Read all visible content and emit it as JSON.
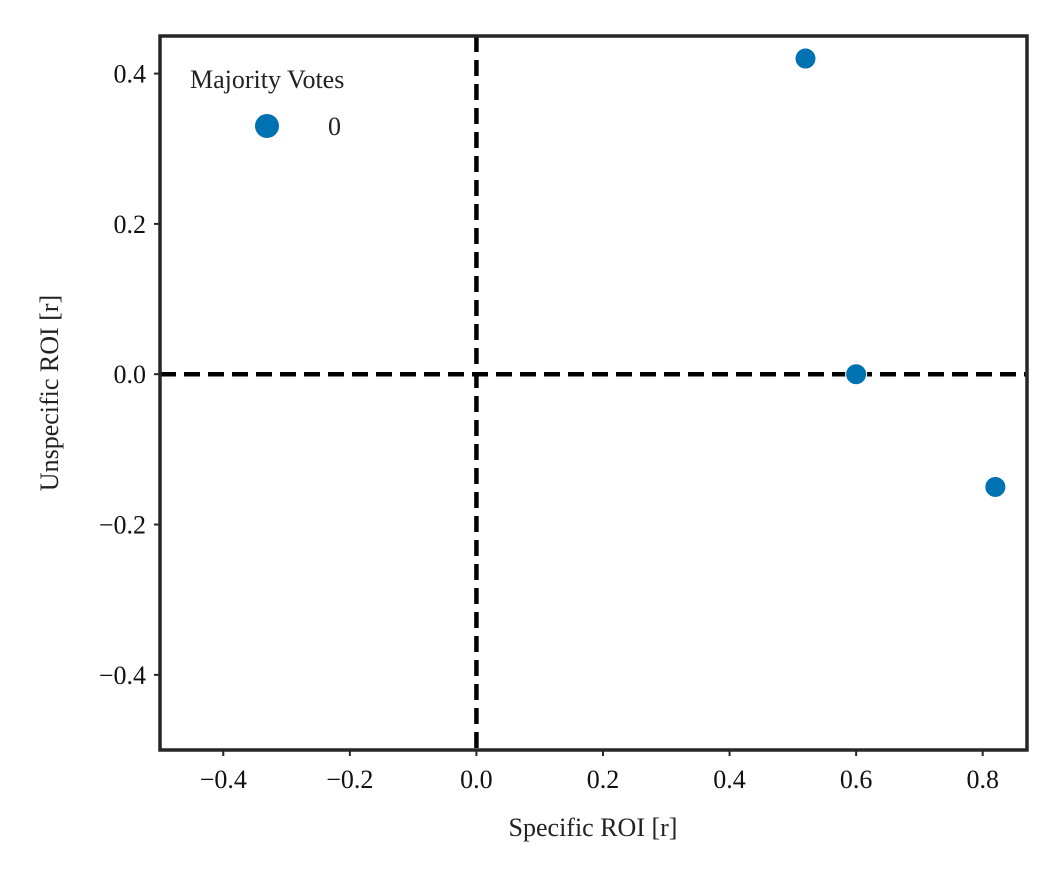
{
  "chart_data": {
    "type": "scatter",
    "xlabel": "Specific ROI [r]",
    "ylabel": "Unspecific ROI [r]",
    "xlim": [
      -0.5,
      0.87
    ],
    "ylim": [
      -0.5,
      0.45
    ],
    "x_ticks": [
      -0.4,
      -0.2,
      0.0,
      0.2,
      0.4,
      0.6,
      0.8
    ],
    "y_ticks": [
      -0.4,
      -0.2,
      0.0,
      0.2,
      0.4
    ],
    "x_tick_labels": [
      "−0.4",
      "−0.2",
      "0.0",
      "0.2",
      "0.4",
      "0.6",
      "0.8"
    ],
    "y_tick_labels": [
      "−0.4",
      "−0.2",
      "0.0",
      "0.2",
      "0.4"
    ],
    "reference_lines": {
      "vertical_x": 0.0,
      "horizontal_y": 0.0,
      "style": "dashed",
      "color": "#000000"
    },
    "grid": false,
    "legend": {
      "title": "Majority Votes",
      "placement": "top-left"
    },
    "series": [
      {
        "name": "0",
        "color": "#0072b2",
        "points": [
          {
            "x": 0.52,
            "y": 0.42
          },
          {
            "x": 0.6,
            "y": 0.0
          },
          {
            "x": 0.82,
            "y": -0.15
          }
        ]
      }
    ]
  }
}
